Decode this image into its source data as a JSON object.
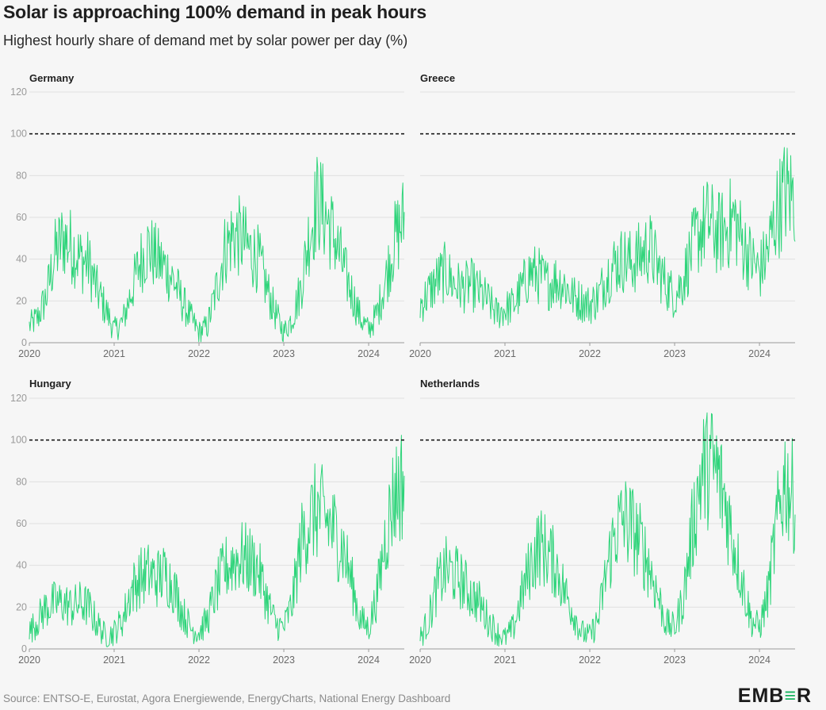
{
  "title": "Solar is approaching 100% demand in peak hours",
  "subtitle": "Highest hourly share of demand met by solar power per day (%)",
  "source": "Source: ENTSO-E, Eurostat, Agora Energiewende, EnergyCharts, National Energy Dashboard",
  "logo": "EMBER",
  "colors": {
    "series": "#2ed47a",
    "reference": "#1b1b1b",
    "grid": "#e0e0e0",
    "axis": "#9a9a9a"
  },
  "chart_data": [
    {
      "type": "line",
      "title": "Germany",
      "xlim": [
        2020.0,
        2024.42
      ],
      "ylim": [
        0,
        120
      ],
      "yticks": [
        0,
        20,
        40,
        60,
        80,
        100,
        120
      ],
      "xticks": [
        "2020",
        "2021",
        "2022",
        "2023",
        "2024"
      ],
      "reference_line": 100,
      "grid": "horizontal",
      "series": [
        {
          "x": [
            2020.0,
            2020.1,
            2020.2,
            2020.3,
            2020.4,
            2020.5,
            2020.6,
            2020.7,
            2020.8,
            2020.9,
            2021.0,
            2021.1,
            2021.2,
            2021.3,
            2021.4,
            2021.5,
            2021.6,
            2021.7,
            2021.8,
            2021.9,
            2022.0,
            2022.1,
            2022.2,
            2022.3,
            2022.4,
            2022.5,
            2022.6,
            2022.7,
            2022.8,
            2022.9,
            2023.0,
            2023.1,
            2023.2,
            2023.3,
            2023.4,
            2023.5,
            2023.6,
            2023.7,
            2023.8,
            2023.9,
            2024.0,
            2024.1,
            2024.2,
            2024.3,
            2024.4
          ],
          "y": [
            8,
            12,
            22,
            42,
            50,
            46,
            40,
            38,
            25,
            16,
            6,
            10,
            24,
            38,
            46,
            40,
            36,
            30,
            20,
            12,
            5,
            8,
            25,
            44,
            52,
            50,
            44,
            40,
            26,
            14,
            5,
            12,
            26,
            52,
            68,
            60,
            50,
            36,
            24,
            12,
            6,
            14,
            30,
            48,
            58
          ]
        }
      ]
    },
    {
      "type": "line",
      "title": "Greece",
      "xlim": [
        2020.0,
        2024.42
      ],
      "ylim": [
        0,
        120
      ],
      "yticks": [
        0,
        20,
        40,
        60,
        80,
        100,
        120
      ],
      "xticks": [
        "2020",
        "2021",
        "2022",
        "2023",
        "2024"
      ],
      "reference_line": 100,
      "grid": "horizontal",
      "series": [
        {
          "x": [
            2020.0,
            2020.1,
            2020.2,
            2020.3,
            2020.4,
            2020.5,
            2020.6,
            2020.7,
            2020.8,
            2020.9,
            2021.0,
            2021.1,
            2021.2,
            2021.3,
            2021.4,
            2021.5,
            2021.6,
            2021.7,
            2021.8,
            2021.9,
            2022.0,
            2022.1,
            2022.2,
            2022.3,
            2022.4,
            2022.5,
            2022.6,
            2022.7,
            2022.8,
            2022.9,
            2023.0,
            2023.1,
            2023.2,
            2023.3,
            2023.4,
            2023.5,
            2023.6,
            2023.7,
            2023.8,
            2023.9,
            2024.0,
            2024.1,
            2024.2,
            2024.3,
            2024.4
          ],
          "y": [
            18,
            24,
            30,
            34,
            28,
            26,
            28,
            24,
            20,
            14,
            16,
            18,
            26,
            34,
            32,
            28,
            30,
            28,
            22,
            20,
            18,
            22,
            32,
            38,
            40,
            38,
            42,
            46,
            36,
            28,
            22,
            30,
            44,
            54,
            58,
            52,
            54,
            60,
            48,
            40,
            34,
            44,
            62,
            72,
            70
          ]
        }
      ]
    },
    {
      "type": "line",
      "title": "Hungary",
      "xlim": [
        2020.0,
        2024.42
      ],
      "ylim": [
        0,
        120
      ],
      "yticks": [
        0,
        20,
        40,
        60,
        80,
        100,
        120
      ],
      "xticks": [
        "2020",
        "2021",
        "2022",
        "2023",
        "2024"
      ],
      "reference_line": 100,
      "grid": "horizontal",
      "series": [
        {
          "x": [
            2020.0,
            2020.1,
            2020.2,
            2020.3,
            2020.4,
            2020.5,
            2020.6,
            2020.7,
            2020.8,
            2020.9,
            2021.0,
            2021.1,
            2021.2,
            2021.3,
            2021.4,
            2021.5,
            2021.6,
            2021.7,
            2021.8,
            2021.9,
            2022.0,
            2022.1,
            2022.2,
            2022.3,
            2022.4,
            2022.5,
            2022.6,
            2022.7,
            2022.8,
            2022.9,
            2023.0,
            2023.1,
            2023.2,
            2023.3,
            2023.4,
            2023.5,
            2023.6,
            2023.7,
            2023.8,
            2023.9,
            2024.0,
            2024.1,
            2024.2,
            2024.3,
            2024.4
          ],
          "y": [
            8,
            14,
            20,
            22,
            22,
            20,
            22,
            20,
            12,
            6,
            8,
            14,
            28,
            34,
            36,
            34,
            36,
            30,
            18,
            10,
            8,
            14,
            28,
            38,
            42,
            44,
            42,
            38,
            24,
            12,
            10,
            22,
            50,
            62,
            66,
            62,
            56,
            48,
            32,
            14,
            10,
            26,
            54,
            74,
            80
          ]
        }
      ]
    },
    {
      "type": "line",
      "title": "Netherlands",
      "xlim": [
        2020.0,
        2024.42
      ],
      "ylim": [
        0,
        120
      ],
      "yticks": [
        0,
        20,
        40,
        60,
        80,
        100,
        120
      ],
      "xticks": [
        "2020",
        "2021",
        "2022",
        "2023",
        "2024"
      ],
      "reference_line": 100,
      "grid": "horizontal",
      "series": [
        {
          "x": [
            2020.0,
            2020.1,
            2020.2,
            2020.3,
            2020.4,
            2020.5,
            2020.6,
            2020.7,
            2020.8,
            2020.9,
            2021.0,
            2021.1,
            2021.2,
            2021.3,
            2021.4,
            2021.5,
            2021.6,
            2021.7,
            2021.8,
            2021.9,
            2022.0,
            2022.1,
            2022.2,
            2022.3,
            2022.4,
            2022.5,
            2022.6,
            2022.7,
            2022.8,
            2022.9,
            2023.0,
            2023.1,
            2023.2,
            2023.3,
            2023.4,
            2023.5,
            2023.6,
            2023.7,
            2023.8,
            2023.9,
            2024.0,
            2024.1,
            2024.2,
            2024.3,
            2024.4
          ],
          "y": [
            5,
            14,
            30,
            38,
            36,
            32,
            26,
            22,
            14,
            8,
            5,
            10,
            26,
            40,
            50,
            46,
            40,
            28,
            18,
            8,
            6,
            14,
            38,
            56,
            62,
            58,
            50,
            40,
            26,
            12,
            10,
            24,
            54,
            82,
            90,
            84,
            70,
            50,
            32,
            14,
            10,
            26,
            58,
            82,
            72
          ]
        }
      ]
    }
  ]
}
